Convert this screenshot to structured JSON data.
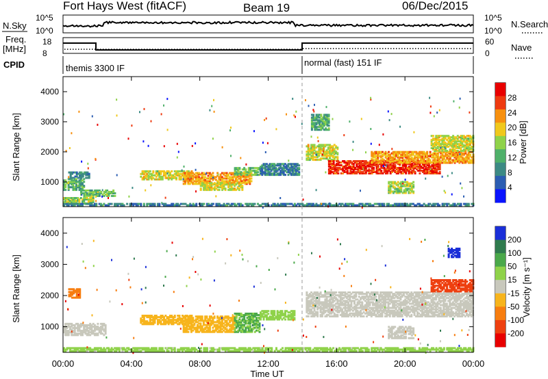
{
  "header": {
    "radar": "Fort Hays West (fitACF)",
    "beam": "Beam 19",
    "date": "06/Dec/2015"
  },
  "params": {
    "nsky_label": "N.Sky",
    "nsky_ticks": [
      "10^5",
      "10^0"
    ],
    "nsearch_label": "N.Search",
    "nsearch_ticks": [
      "10^5",
      "10^0"
    ],
    "freq_label": "Freq.",
    "freq_unit": "[MHz]",
    "freq_ticks": [
      "18",
      "8"
    ],
    "nave_label": "Nave",
    "nave_ticks": [
      "60",
      "0"
    ],
    "cpid_label": "CPID",
    "cpid_segments": [
      {
        "name": "themis 3300 IF",
        "start_hour": 0,
        "end_hour": 14
      },
      {
        "name": "normal (fast) 151 IF",
        "start_hour": 14,
        "end_hour": 24
      }
    ]
  },
  "chart_data": [
    {
      "type": "heatmap",
      "name": "power-panel",
      "ylabel": "Slant Range [km]",
      "xlabel": "",
      "ylim": [
        180,
        4500
      ],
      "xlim": [
        0,
        24
      ],
      "y_ticks": [
        "4000",
        "3000",
        "2000",
        "1000"
      ],
      "colorbar": {
        "label": "Power [dB]",
        "ticks": [
          "28",
          "24",
          "20",
          "16",
          "12",
          "8",
          "4"
        ],
        "colors": [
          "#0a14ff",
          "#2b5db2",
          "#3c8a84",
          "#4fb06a",
          "#8fd24a",
          "#f0c81c",
          "#f7900f",
          "#ee3a10",
          "#e80000"
        ]
      },
      "bands": [
        {
          "t0": 0.0,
          "t1": 1.8,
          "r0": 250,
          "r1": 450,
          "value": 16
        },
        {
          "t0": 0.0,
          "t1": 1.2,
          "r0": 700,
          "r1": 1100,
          "value": 12
        },
        {
          "t0": 0.3,
          "t1": 1.5,
          "r0": 1100,
          "r1": 1300,
          "value": 8
        },
        {
          "t0": 1.0,
          "t1": 3.0,
          "r0": 500,
          "r1": 700,
          "value": 14
        },
        {
          "t0": 4.5,
          "t1": 7.5,
          "r0": 1050,
          "r1": 1350,
          "value": 18
        },
        {
          "t0": 7.0,
          "t1": 11.0,
          "r0": 900,
          "r1": 1300,
          "value": 22
        },
        {
          "t0": 8.0,
          "t1": 10.5,
          "r0": 700,
          "r1": 950,
          "value": 18
        },
        {
          "t0": 10.0,
          "t1": 11.5,
          "r0": 1200,
          "r1": 1450,
          "value": 14
        },
        {
          "t0": 11.5,
          "t1": 13.8,
          "r0": 1200,
          "r1": 1600,
          "value": 8
        },
        {
          "t0": 14.2,
          "t1": 16.0,
          "r0": 1700,
          "r1": 2200,
          "value": 18
        },
        {
          "t0": 15.5,
          "t1": 22.0,
          "r0": 1250,
          "r1": 1700,
          "value": 28
        },
        {
          "t0": 18.0,
          "t1": 24.0,
          "r0": 1600,
          "r1": 2000,
          "value": 22
        },
        {
          "t0": 19.0,
          "t1": 20.5,
          "r0": 600,
          "r1": 1000,
          "value": 16
        },
        {
          "t0": 21.5,
          "t1": 24.0,
          "r0": 2000,
          "r1": 2500,
          "value": 18
        },
        {
          "t0": 14.5,
          "t1": 15.5,
          "r0": 2700,
          "r1": 3200,
          "value": 12
        },
        {
          "t0": 0.0,
          "t1": 24.0,
          "r0": 190,
          "r1": 280,
          "value": 8
        }
      ]
    },
    {
      "type": "heatmap",
      "name": "velocity-panel",
      "ylabel": "Slant Range [km]",
      "xlabel": "Time UT",
      "ylim": [
        180,
        4500
      ],
      "xlim": [
        0,
        24
      ],
      "y_ticks": [
        "4000",
        "3000",
        "2000",
        "1000"
      ],
      "x_ticks": [
        "00:00",
        "04:00",
        "08:00",
        "12:00",
        "16:00",
        "20:00",
        "00:00"
      ],
      "colorbar": {
        "label": "Velocity [m s⁻¹]",
        "ticks": [
          "200",
          "100",
          "50",
          "15",
          "-15",
          "-50",
          "-100",
          "-200"
        ],
        "colors": [
          "#1a2fd8",
          "#2f7a4e",
          "#4aa84a",
          "#8fd24a",
          "#c8c8bc",
          "#f7b41c",
          "#f77d0f",
          "#ee4010",
          "#e80000"
        ]
      },
      "bands": [
        {
          "t0": 0.0,
          "t1": 2.5,
          "r0": 700,
          "r1": 1100,
          "value": 0
        },
        {
          "t0": 0.3,
          "t1": 1.0,
          "r0": 1900,
          "r1": 2200,
          "value": -80
        },
        {
          "t0": 4.5,
          "t1": 7.5,
          "r0": 1050,
          "r1": 1350,
          "value": -50
        },
        {
          "t0": 7.0,
          "t1": 10.0,
          "r0": 800,
          "r1": 1300,
          "value": -50
        },
        {
          "t0": 10.0,
          "t1": 11.5,
          "r0": 800,
          "r1": 1400,
          "value": 75
        },
        {
          "t0": 11.5,
          "t1": 13.5,
          "r0": 1200,
          "r1": 1500,
          "value": 60
        },
        {
          "t0": 14.2,
          "t1": 24.0,
          "r0": 1300,
          "r1": 2100,
          "value": 0
        },
        {
          "t0": 19.0,
          "t1": 20.5,
          "r0": 600,
          "r1": 1000,
          "value": 0
        },
        {
          "t0": 21.5,
          "t1": 24.0,
          "r0": 2100,
          "r1": 2500,
          "value": -150
        },
        {
          "t0": 22.5,
          "t1": 23.2,
          "r0": 3200,
          "r1": 3500,
          "value": 180
        },
        {
          "t0": 0.0,
          "t1": 24.0,
          "r0": 190,
          "r1": 320,
          "value": 30
        }
      ]
    }
  ]
}
